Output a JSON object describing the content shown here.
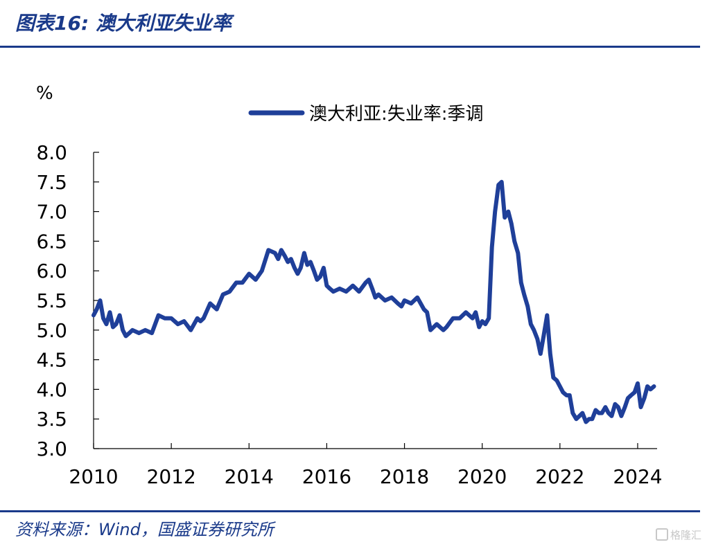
{
  "header": {
    "title": "图表16:  澳大利亚失业率"
  },
  "footer": {
    "source": "资料来源：Wind，国盛证券研究所",
    "watermark": "格隆汇"
  },
  "colors": {
    "accent": "#1a3a8a",
    "series": "#1f3f99"
  },
  "chart_data": {
    "type": "line",
    "title": "图表16:  澳大利亚失业率",
    "ylabel": "%",
    "xlabel": "",
    "ylim": [
      3.0,
      8.0
    ],
    "yticks": [
      "3.0",
      "3.5",
      "4.0",
      "4.5",
      "5.0",
      "5.5",
      "6.0",
      "6.5",
      "7.0",
      "7.5",
      "8.0"
    ],
    "xlim": [
      2010,
      2024.5
    ],
    "xticks": [
      "2010",
      "2012",
      "2014",
      "2016",
      "2018",
      "2020",
      "2022",
      "2024"
    ],
    "grid": false,
    "legend": {
      "position": "top",
      "entries": [
        "澳大利亚:失业率:季调"
      ]
    },
    "series": [
      {
        "name": "澳大利亚:失业率:季调",
        "x": [
          2010.0,
          2010.08,
          2010.17,
          2010.25,
          2010.33,
          2010.42,
          2010.5,
          2010.58,
          2010.67,
          2010.75,
          2010.83,
          2010.92,
          2011.0,
          2011.17,
          2011.33,
          2011.5,
          2011.67,
          2011.83,
          2012.0,
          2012.17,
          2012.33,
          2012.5,
          2012.67,
          2012.75,
          2012.83,
          2013.0,
          2013.17,
          2013.33,
          2013.5,
          2013.67,
          2013.83,
          2014.0,
          2014.17,
          2014.33,
          2014.5,
          2014.67,
          2014.75,
          2014.83,
          2014.92,
          2015.0,
          2015.08,
          2015.17,
          2015.25,
          2015.33,
          2015.42,
          2015.5,
          2015.58,
          2015.67,
          2015.75,
          2015.83,
          2015.92,
          2016.0,
          2016.08,
          2016.17,
          2016.33,
          2016.5,
          2016.67,
          2016.83,
          2017.0,
          2017.08,
          2017.17,
          2017.25,
          2017.33,
          2017.5,
          2017.67,
          2017.83,
          2017.92,
          2018.0,
          2018.17,
          2018.33,
          2018.5,
          2018.58,
          2018.67,
          2018.75,
          2018.83,
          2019.0,
          2019.08,
          2019.25,
          2019.42,
          2019.58,
          2019.75,
          2019.83,
          2019.92,
          2020.0,
          2020.08,
          2020.17,
          2020.25,
          2020.33,
          2020.42,
          2020.5,
          2020.58,
          2020.67,
          2020.75,
          2020.83,
          2020.92,
          2021.0,
          2021.08,
          2021.17,
          2021.25,
          2021.33,
          2021.42,
          2021.5,
          2021.58,
          2021.67,
          2021.75,
          2021.83,
          2021.92,
          2022.0,
          2022.08,
          2022.17,
          2022.25,
          2022.33,
          2022.42,
          2022.5,
          2022.58,
          2022.67,
          2022.75,
          2022.83,
          2022.92,
          2023.0,
          2023.08,
          2023.17,
          2023.25,
          2023.33,
          2023.42,
          2023.5,
          2023.58,
          2023.67,
          2023.75,
          2023.83,
          2023.92,
          2024.0,
          2024.08,
          2024.17,
          2024.25,
          2024.33,
          2024.42
        ],
        "values": [
          5.25,
          5.35,
          5.5,
          5.2,
          5.1,
          5.3,
          5.05,
          5.1,
          5.25,
          5.0,
          4.9,
          4.95,
          5.0,
          4.95,
          5.0,
          4.95,
          5.25,
          5.2,
          5.2,
          5.1,
          5.15,
          5.0,
          5.2,
          5.15,
          5.2,
          5.45,
          5.35,
          5.6,
          5.65,
          5.8,
          5.8,
          5.95,
          5.85,
          6.0,
          6.35,
          6.3,
          6.2,
          6.35,
          6.25,
          6.15,
          6.2,
          6.05,
          5.95,
          6.05,
          6.3,
          6.1,
          6.15,
          6.0,
          5.85,
          5.9,
          6.05,
          5.75,
          5.7,
          5.65,
          5.7,
          5.65,
          5.75,
          5.65,
          5.8,
          5.85,
          5.7,
          5.55,
          5.6,
          5.5,
          5.55,
          5.45,
          5.4,
          5.5,
          5.45,
          5.55,
          5.35,
          5.3,
          5.0,
          5.05,
          5.1,
          5.0,
          5.05,
          5.2,
          5.2,
          5.3,
          5.2,
          5.3,
          5.05,
          5.15,
          5.1,
          5.2,
          6.4,
          7.0,
          7.45,
          7.5,
          6.9,
          7.0,
          6.8,
          6.5,
          6.3,
          5.8,
          5.6,
          5.4,
          5.1,
          5.0,
          4.85,
          4.6,
          4.9,
          5.25,
          4.6,
          4.2,
          4.15,
          4.05,
          3.95,
          3.9,
          3.9,
          3.6,
          3.5,
          3.55,
          3.6,
          3.45,
          3.5,
          3.5,
          3.65,
          3.6,
          3.6,
          3.7,
          3.6,
          3.55,
          3.75,
          3.7,
          3.55,
          3.7,
          3.85,
          3.9,
          3.95,
          4.1,
          3.7,
          3.85,
          4.05,
          4.0,
          4.05
        ]
      }
    ]
  }
}
